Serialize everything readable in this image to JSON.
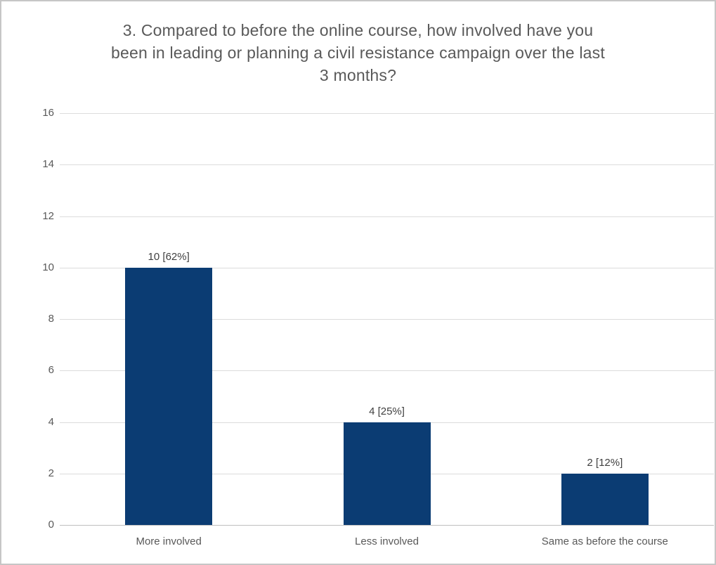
{
  "chart_data": {
    "type": "bar",
    "title": "3. Compared to before the online course, how involved have you been in leading or planning a civil resistance campaign over the last 3 months?",
    "title_lines": [
      "3. Compared to before the online course, how involved have you",
      "been in leading or planning a civil resistance campaign over the last",
      "3 months?"
    ],
    "categories": [
      "More involved",
      "Less involved",
      "Same as before the course"
    ],
    "values": [
      10,
      4,
      2
    ],
    "percentages": [
      62,
      25,
      12
    ],
    "data_labels": [
      "10 [62%]",
      "4 [25%]",
      "2 [12%]"
    ],
    "y_ticks": [
      0,
      2,
      4,
      6,
      8,
      10,
      12,
      14,
      16
    ],
    "ylim": [
      0,
      16
    ],
    "xlabel": "",
    "ylabel": "",
    "grid": true,
    "legend": "none",
    "colors": {
      "bar": "#0b3c73",
      "gridline": "#dcdcdc",
      "axis_line": "#bfbfbf",
      "title_text": "#595959",
      "tick_text": "#595959",
      "data_label_text": "#404040",
      "frame_border": "#c6c6c6",
      "background": "#ffffff"
    }
  }
}
